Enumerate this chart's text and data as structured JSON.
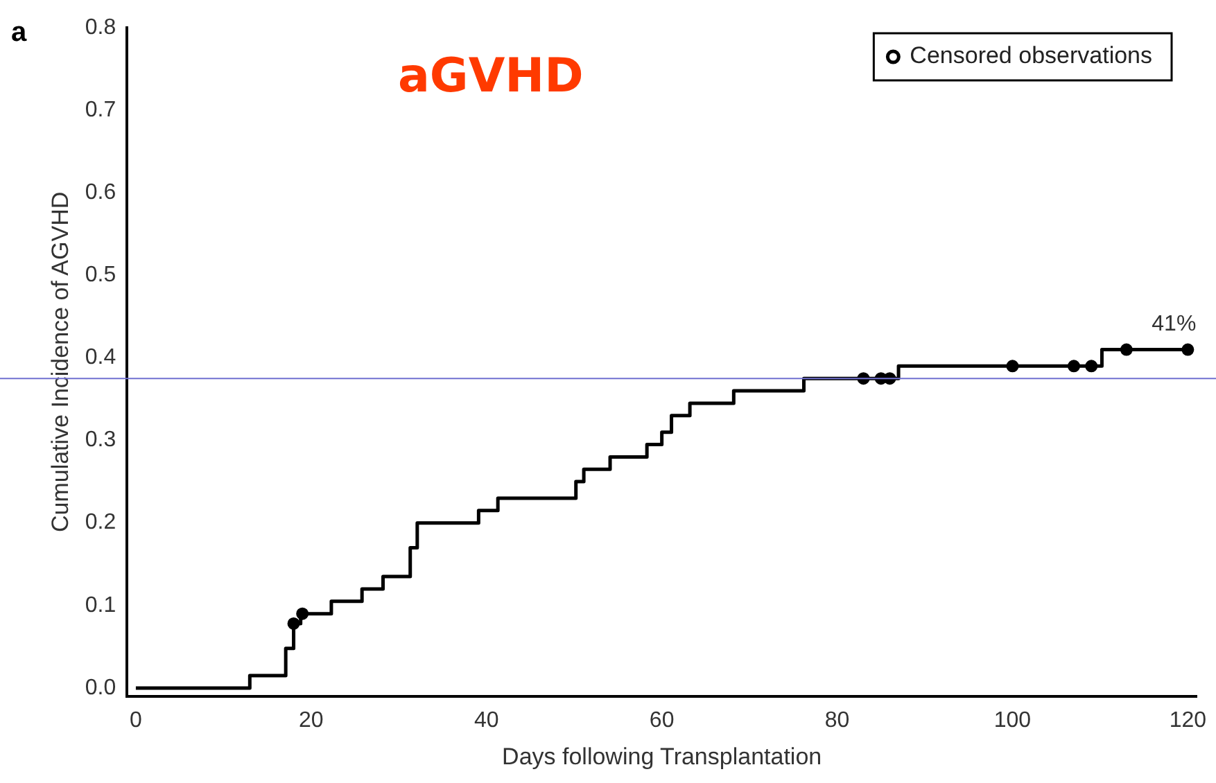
{
  "chart_data": {
    "type": "step",
    "title": "aGVHD",
    "xlabel": "Days following Transplantation",
    "ylabel": "Cumulative Incidence of AGVHD",
    "xlim": [
      -1,
      121
    ],
    "xticks": [
      0,
      20,
      40,
      60,
      80,
      100,
      120
    ],
    "ylim": [
      -0.01,
      0.8
    ],
    "yticks": [
      {
        "value": 0,
        "label": "0.0"
      },
      0.1,
      0.2,
      0.3,
      0.4,
      0.5,
      0.6,
      0.7,
      0.8
    ],
    "grid": false,
    "legend": "top right",
    "line_style": "solid",
    "series": [
      {
        "color": "#000000",
        "marker": "none",
        "x": [
          0,
          13,
          17.1,
          18,
          18.8,
          22.3,
          25.8,
          28.2,
          31.3,
          32.1,
          39.1,
          41.3,
          50.2,
          51.1,
          54.1,
          58.3,
          60,
          61.1,
          63.2,
          68.2,
          76.2,
          87,
          110.2,
          120
        ],
        "values": [
          0,
          0.015,
          0.048,
          0.078,
          0.09,
          0.105,
          0.12,
          0.135,
          0.17,
          0.2,
          0.215,
          0.23,
          0.25,
          0.265,
          0.28,
          0.295,
          0.31,
          0.33,
          0.345,
          0.36,
          0.375,
          0.39,
          0.41,
          0.41
        ]
      },
      {
        "type": "scatter",
        "name": "Censored observations",
        "color": "#000000",
        "marker": "circle",
        "x": [
          18,
          19,
          83,
          85,
          86,
          100,
          107,
          109,
          113,
          120
        ],
        "values": [
          0.078,
          0.09,
          0.375,
          0.375,
          0.375,
          0.39,
          0.39,
          0.39,
          0.41,
          0.41
        ]
      }
    ],
    "ref_lines": [
      {
        "axis": "y",
        "value": 0.375,
        "color": "#7070d0",
        "line_style": "solid"
      }
    ],
    "annotations": [
      "a",
      {
        "text": "41%",
        "x": 120,
        "y": 0.41
      }
    ]
  }
}
